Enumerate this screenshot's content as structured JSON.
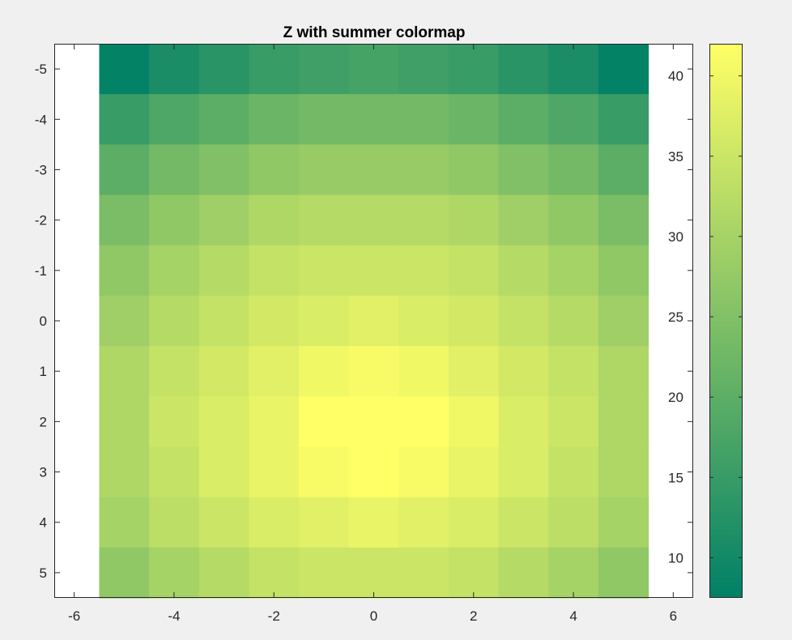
{
  "chart_data": {
    "type": "heatmap",
    "title": "Z with summer colormap",
    "colormap": "summer",
    "colors": {
      "colormap_start": "#008066",
      "colormap_end": "#ffff66",
      "figure_background": "#f0f0f0",
      "axes_background": "#ffffff",
      "axis_line": "#262626"
    },
    "x": [
      -5,
      -4,
      -3,
      -2,
      -1,
      0,
      1,
      2,
      3,
      4,
      5
    ],
    "y": [
      -5,
      -4,
      -3,
      -2,
      -1,
      0,
      1,
      2,
      3,
      4,
      5
    ],
    "z": [
      [
        8,
        11,
        13,
        15,
        16,
        17,
        16,
        15,
        13,
        11,
        8
      ],
      [
        15,
        18,
        20,
        22,
        23,
        23,
        23,
        22,
        20,
        18,
        15
      ],
      [
        20,
        23,
        25,
        27,
        28,
        28,
        28,
        27,
        25,
        23,
        20
      ],
      [
        24,
        27,
        29,
        31,
        32,
        32,
        32,
        31,
        29,
        27,
        24
      ],
      [
        27,
        30,
        32,
        34,
        35,
        35,
        35,
        34,
        32,
        30,
        27
      ],
      [
        29,
        32,
        34,
        36,
        37,
        38,
        37,
        36,
        34,
        32,
        29
      ],
      [
        31,
        34,
        36,
        38,
        40,
        41,
        40,
        38,
        36,
        34,
        31
      ],
      [
        31,
        35,
        37,
        39,
        42,
        42,
        42,
        40,
        37,
        35,
        31
      ],
      [
        31,
        34,
        37,
        39,
        41,
        42,
        41,
        39,
        37,
        34,
        31
      ],
      [
        30,
        33,
        35,
        37,
        38,
        39,
        38,
        37,
        35,
        33,
        30
      ],
      [
        27,
        30,
        32,
        34,
        35,
        35,
        35,
        34,
        32,
        30,
        27
      ]
    ],
    "xlim": [
      -6.4,
      6.4
    ],
    "ylim": [
      -5.5,
      5.5
    ],
    "y_direction": "reverse",
    "xticks": [
      -6,
      -4,
      -2,
      0,
      2,
      4,
      6
    ],
    "xtick_labels": [
      "-6",
      "-4",
      "-2",
      "0",
      "2",
      "4",
      "6"
    ],
    "yticks": [
      -5,
      -4,
      -3,
      -2,
      -1,
      0,
      1,
      2,
      3,
      4,
      5
    ],
    "ytick_labels": [
      "-5",
      "-4",
      "-3",
      "-2",
      "-1",
      "0",
      "1",
      "2",
      "3",
      "4",
      "5"
    ],
    "clim": [
      7.5,
      42
    ],
    "colorbar_ticks": [
      10,
      15,
      20,
      25,
      30,
      35,
      40
    ],
    "colorbar_tick_labels": [
      "10",
      "15",
      "20",
      "25",
      "30",
      "35",
      "40"
    ],
    "colorbar_location": "east",
    "grid": false,
    "xlabel": "",
    "ylabel": ""
  }
}
